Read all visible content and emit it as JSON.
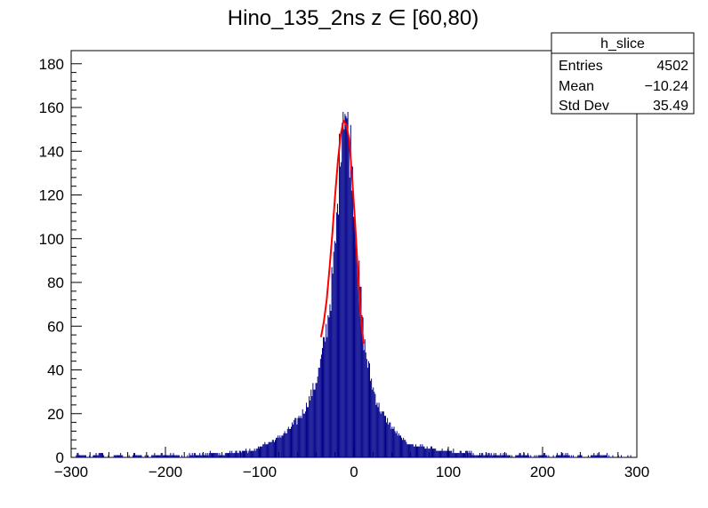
{
  "chart_data": {
    "type": "histogram",
    "title": "Hino_135_2ns z  ∈ [60,80)",
    "xlim": [
      -300,
      300
    ],
    "ylim": [
      0,
      186
    ],
    "x_ticks": [
      "−300",
      "−200",
      "−100",
      "0",
      "100",
      "200",
      "300"
    ],
    "y_ticks": [
      "0",
      "20",
      "40",
      "60",
      "80",
      "100",
      "120",
      "140",
      "160",
      "180"
    ],
    "histogram_color": "#00008b",
    "fit_color": "#ff0000",
    "stats_box": {
      "name": "h_slice",
      "rows": [
        {
          "label": "Entries",
          "value": "4502"
        },
        {
          "label": "Mean",
          "value": "−10.24"
        },
        {
          "label": "Std Dev",
          "value": "35.49"
        }
      ]
    },
    "histogram": {
      "bin_width": 1,
      "points": [
        [
          -300,
          0
        ],
        [
          -290,
          1
        ],
        [
          -280,
          0
        ],
        [
          -270,
          1
        ],
        [
          -260,
          0
        ],
        [
          -250,
          1
        ],
        [
          -240,
          0
        ],
        [
          -230,
          1
        ],
        [
          -220,
          0
        ],
        [
          -210,
          1
        ],
        [
          -200,
          1
        ],
        [
          -190,
          1
        ],
        [
          -180,
          0
        ],
        [
          -170,
          1
        ],
        [
          -160,
          1
        ],
        [
          -150,
          2
        ],
        [
          -140,
          1
        ],
        [
          -130,
          2
        ],
        [
          -120,
          2
        ],
        [
          -110,
          3
        ],
        [
          -100,
          4
        ],
        [
          -95,
          6
        ],
        [
          -90,
          7
        ],
        [
          -85,
          8
        ],
        [
          -80,
          9
        ],
        [
          -75,
          11
        ],
        [
          -70,
          12
        ],
        [
          -65,
          15
        ],
        [
          -60,
          17
        ],
        [
          -55,
          20
        ],
        [
          -50,
          24
        ],
        [
          -45,
          29
        ],
        [
          -40,
          35
        ],
        [
          -35,
          44
        ],
        [
          -30,
          56
        ],
        [
          -25,
          72
        ],
        [
          -20,
          95
        ],
        [
          -17,
          118
        ],
        [
          -15,
          140
        ],
        [
          -13,
          155
        ],
        [
          -11,
          165
        ],
        [
          -9,
          160
        ],
        [
          -7,
          150
        ],
        [
          -5,
          145
        ],
        [
          -3,
          140
        ],
        [
          0,
          120
        ],
        [
          3,
          100
        ],
        [
          5,
          84
        ],
        [
          8,
          70
        ],
        [
          10,
          55
        ],
        [
          15,
          42
        ],
        [
          20,
          32
        ],
        [
          25,
          25
        ],
        [
          30,
          20
        ],
        [
          35,
          17
        ],
        [
          40,
          14
        ],
        [
          45,
          11
        ],
        [
          50,
          9
        ],
        [
          55,
          7
        ],
        [
          60,
          6
        ],
        [
          70,
          5
        ],
        [
          80,
          4
        ],
        [
          90,
          3
        ],
        [
          100,
          3
        ],
        [
          110,
          2
        ],
        [
          120,
          2
        ],
        [
          130,
          1
        ],
        [
          140,
          1
        ],
        [
          150,
          1
        ],
        [
          160,
          1
        ],
        [
          170,
          0
        ],
        [
          180,
          1
        ],
        [
          190,
          0
        ],
        [
          200,
          1
        ],
        [
          210,
          0
        ],
        [
          220,
          1
        ],
        [
          240,
          0
        ],
        [
          260,
          1
        ],
        [
          280,
          0
        ],
        [
          300,
          0
        ]
      ]
    },
    "fit": {
      "x": [
        -35,
        -32,
        -29,
        -26,
        -23,
        -20,
        -17,
        -14,
        -11,
        -8,
        -5,
        -2,
        1,
        4,
        7,
        10
      ],
      "y": [
        55,
        62,
        72,
        86,
        102,
        120,
        136,
        148,
        154,
        152,
        145,
        128,
        108,
        86,
        66,
        52
      ]
    }
  }
}
